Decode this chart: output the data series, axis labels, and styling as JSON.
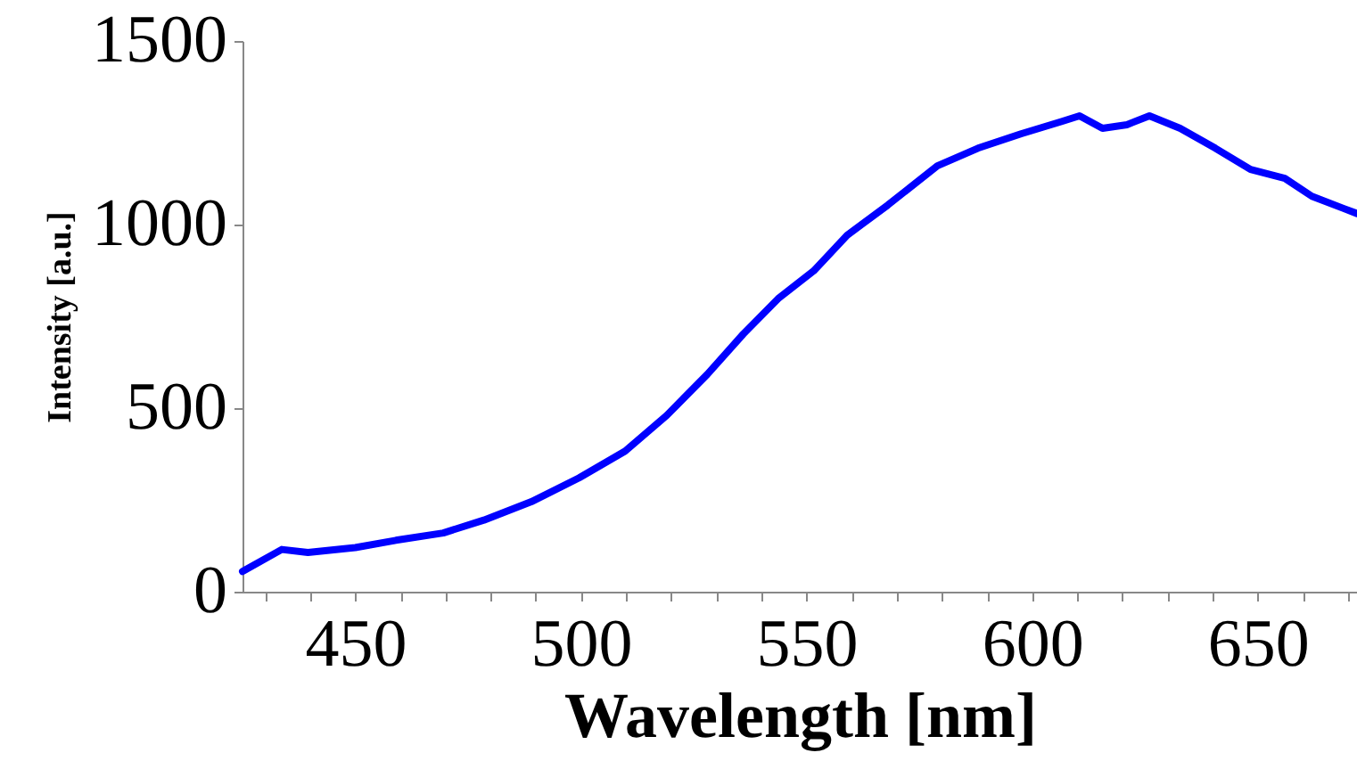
{
  "chart_data": {
    "type": "line",
    "xlabel": "Wavelength [nm]",
    "ylabel": "Intensity [a.u.]",
    "xlim": [
      425,
      672
    ],
    "ylim": [
      0,
      1500
    ],
    "xticks": [
      {
        "value": 430,
        "label": null
      },
      {
        "value": 440,
        "label": null
      },
      450,
      {
        "value": 460,
        "label": null
      },
      {
        "value": 470,
        "label": null
      },
      {
        "value": 480,
        "label": null
      },
      {
        "value": 490,
        "label": null
      },
      500,
      {
        "value": 510,
        "label": null
      },
      {
        "value": 520,
        "label": null
      },
      {
        "value": 530,
        "label": null
      },
      {
        "value": 540,
        "label": null
      },
      550,
      {
        "value": 560,
        "label": null
      },
      {
        "value": 570,
        "label": null
      },
      {
        "value": 580,
        "label": null
      },
      {
        "value": 590,
        "label": null
      },
      600,
      {
        "value": 610,
        "label": null
      },
      {
        "value": 620,
        "label": null
      },
      {
        "value": 630,
        "label": null
      },
      {
        "value": 640,
        "label": null
      },
      650,
      {
        "value": 660,
        "label": null
      },
      {
        "value": 670,
        "label": null
      }
    ],
    "yticks": [
      0,
      500,
      1000,
      1500
    ],
    "grid": false,
    "line_style": "solid",
    "series": [
      {
        "color": "#0000ff",
        "x": [
          425,
          433.7,
          439.5,
          450,
          459,
          469.5,
          478.5,
          489,
          499.6,
          509.8,
          519,
          528,
          536,
          543.7,
          551.6,
          559,
          568,
          579,
          588,
          597.5,
          606.6,
          610.5,
          615.6,
          621,
          626,
          632.8,
          640.6,
          648.4,
          656,
          662,
          669,
          672
        ],
        "values": [
          55,
          115,
          107,
          120,
          140,
          160,
          195,
          245,
          310,
          383,
          480,
          592,
          702,
          798,
          874,
          971,
          1053,
          1160,
          1208,
          1247,
          1281,
          1296,
          1262,
          1272,
          1296,
          1262,
          1208,
          1150,
          1126,
          1077,
          1044,
          1030
        ]
      }
    ]
  }
}
